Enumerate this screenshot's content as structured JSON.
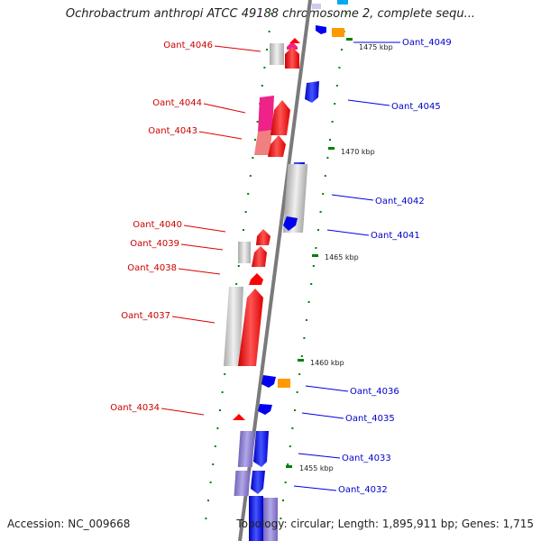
{
  "title": "Ochrobactrum anthropi ATCC 49188 chromosome 2, complete sequ...",
  "footer": {
    "accession": "Accession: NC_009668",
    "topology": "Topology: circular; Length: 1,895,911 bp; Genes: 1,715"
  },
  "colors": {
    "forward_gene": "#ff0000",
    "reverse_gene": "#0000ff",
    "forward_label": "#cc0000",
    "reverse_label": "#0000cc",
    "highlight_magenta": "#ee2288",
    "highlight_pink": "#f08080",
    "other_feature": "#ff9900",
    "cds_box": "#cccccc",
    "cds_box_purple": "#8877cc",
    "backbone": "#808080",
    "tick": "#008000"
  },
  "forward_labels": [
    "Oant_4046",
    "Oant_4044",
    "Oant_4043",
    "Oant_4040",
    "Oant_4039",
    "Oant_4038",
    "Oant_4037",
    "Oant_4034"
  ],
  "reverse_labels": [
    "Oant_4049",
    "Oant_4045",
    "Oant_4042",
    "Oant_4041",
    "Oant_4036",
    "Oant_4035",
    "Oant_4033",
    "Oant_4032"
  ],
  "scale_labels": [
    "1475 kbp",
    "1470 kbp",
    "1465 kbp",
    "1460 kbp",
    "1455 kbp"
  ]
}
